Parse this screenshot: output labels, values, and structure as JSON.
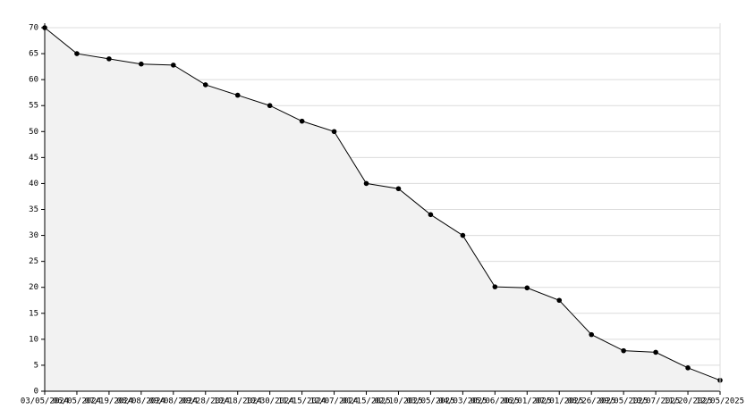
{
  "chart_data": {
    "type": "line",
    "categories": [
      "03/05/2024",
      "06/05/2024",
      "07/19/2024",
      "08/08/2024",
      "09/08/2024",
      "09/28/2024",
      "10/18/2024",
      "10/30/2024",
      "11/15/2024",
      "12/07/2024",
      "01/15/2025",
      "02/10/2025",
      "03/05/2025",
      "04/03/2025",
      "05/06/2025",
      "06/01/2025",
      "07/01/2025",
      "08/26/2025",
      "09/05/2025",
      "10/07/2025",
      "11/20/2025",
      "12/05/2025"
    ],
    "series": [
      {
        "color": "#000000",
        "fill": "#f2f2f2",
        "values": [
          70,
          65,
          64,
          63,
          62.8,
          59,
          57,
          55,
          52,
          50,
          40,
          39,
          34,
          30,
          20.1,
          19.9,
          17.5,
          10.9,
          7.8,
          7.5,
          4.5,
          2.1
        ]
      }
    ],
    "ylim": [
      0,
      70
    ],
    "yticks": [
      0,
      5,
      10,
      15,
      20,
      25,
      30,
      35,
      40,
      45,
      50,
      55,
      60,
      65,
      70
    ],
    "grid": true
  }
}
